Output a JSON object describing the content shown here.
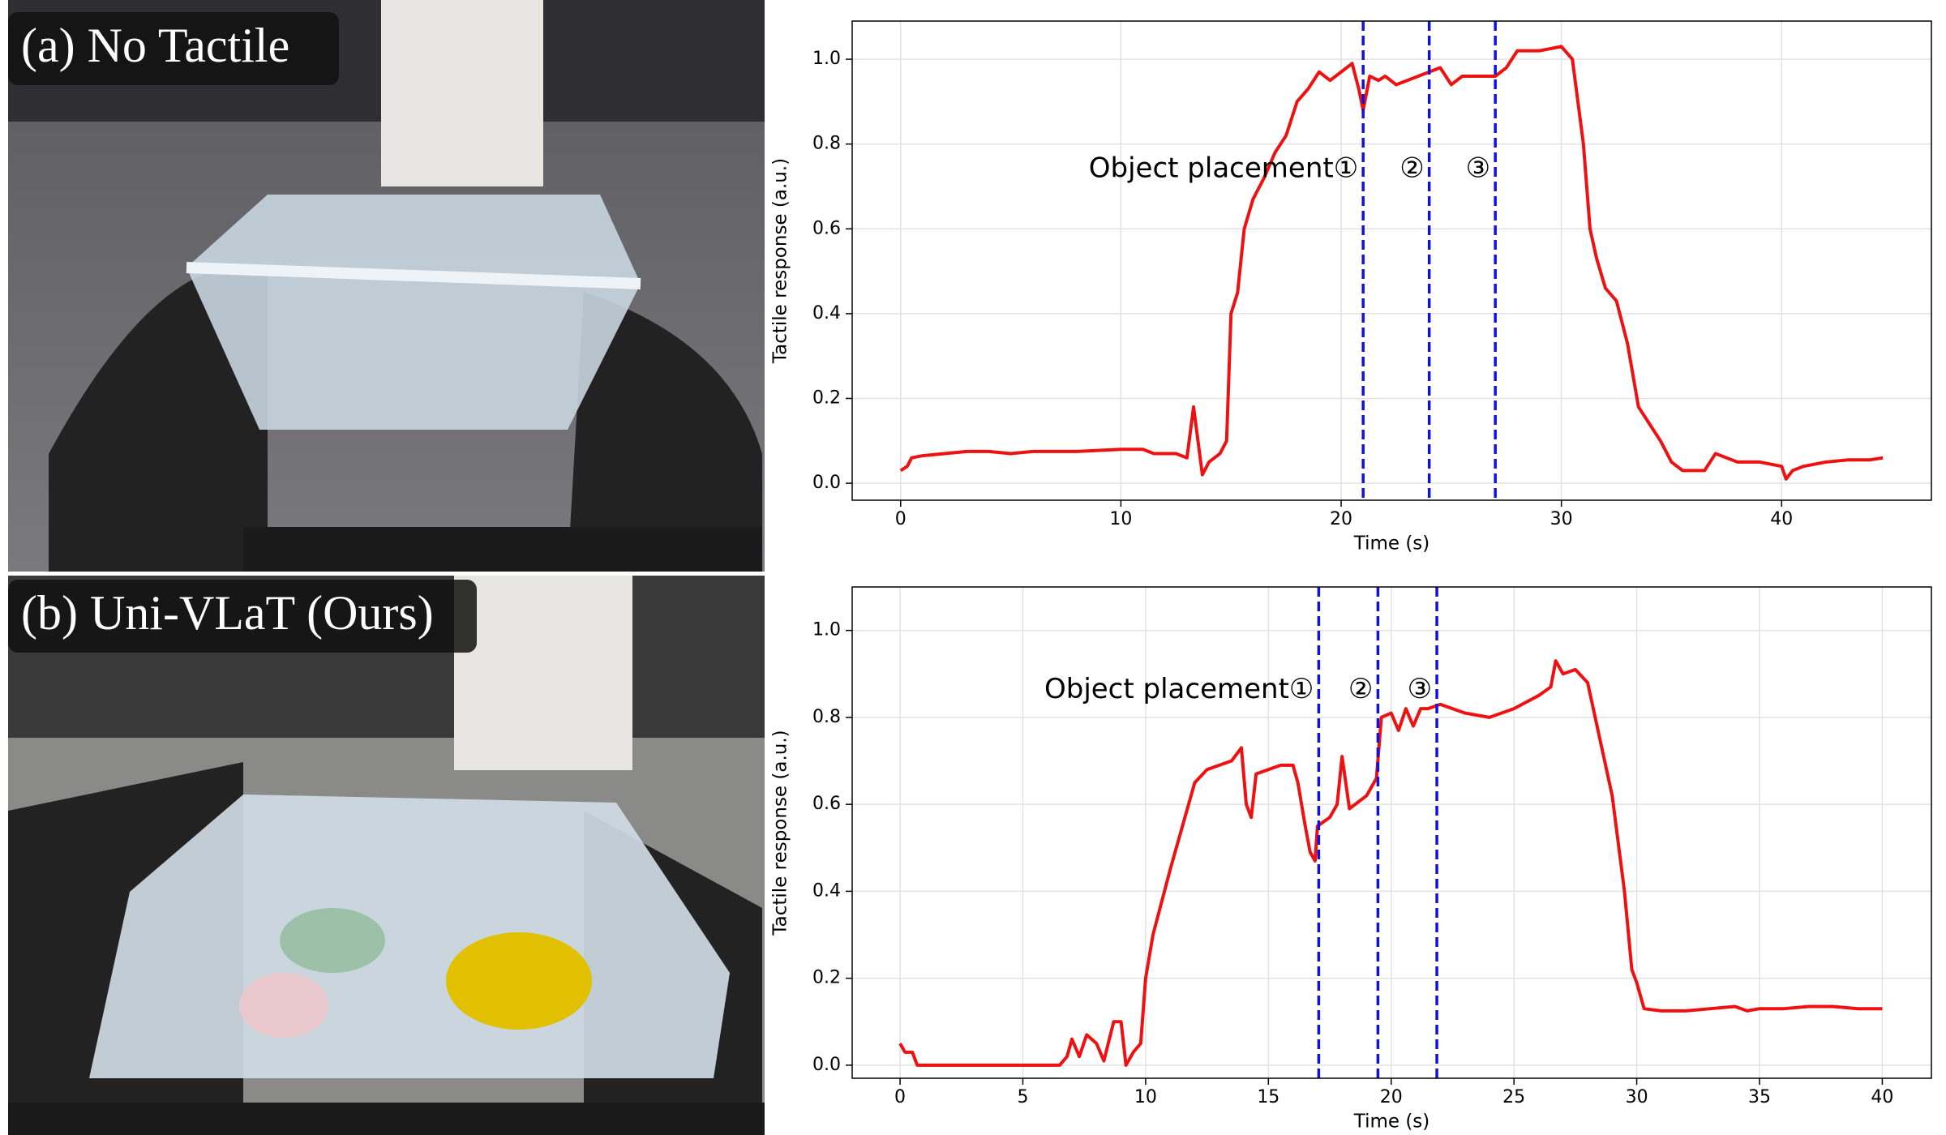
{
  "panels": [
    {
      "label": "(a) No Tactile"
    },
    {
      "label": "(b) Uni-VLaT (Ours)"
    }
  ],
  "chart_data": [
    {
      "type": "line",
      "x_label": "Time (s)",
      "y_label": "Tactile response (a.u.)",
      "x": [
        0,
        0.3,
        0.5,
        1,
        2,
        3,
        4,
        5,
        6,
        8,
        10,
        11,
        11.5,
        12,
        12.5,
        13,
        13.3,
        13.5,
        13.7,
        14,
        14.5,
        14.8,
        15,
        15.3,
        15.6,
        16,
        16.5,
        17,
        17.5,
        18,
        18.5,
        19,
        19.5,
        20,
        20.5,
        20.8,
        21,
        21.3,
        21.7,
        22,
        22.5,
        23,
        23.5,
        24,
        24.5,
        25,
        25.5,
        26,
        27,
        27.5,
        28,
        29,
        30,
        30.5,
        31,
        31.3,
        31.6,
        32,
        32.5,
        33,
        33.5,
        34,
        34.5,
        35,
        35.5,
        36,
        36.5,
        37,
        38,
        39,
        40,
        40.2,
        40.5,
        41,
        42,
        43,
        44,
        44.6
      ],
      "series": [
        {
          "color": "#ee1111",
          "values": [
            0.03,
            0.04,
            0.06,
            0.065,
            0.07,
            0.075,
            0.075,
            0.07,
            0.075,
            0.075,
            0.08,
            0.08,
            0.07,
            0.07,
            0.07,
            0.06,
            0.18,
            0.1,
            0.02,
            0.05,
            0.07,
            0.1,
            0.4,
            0.45,
            0.6,
            0.67,
            0.72,
            0.78,
            0.82,
            0.9,
            0.93,
            0.97,
            0.95,
            0.97,
            0.99,
            0.93,
            0.88,
            0.96,
            0.95,
            0.96,
            0.94,
            0.95,
            0.96,
            0.97,
            0.98,
            0.94,
            0.96,
            0.96,
            0.96,
            0.98,
            1.02,
            1.02,
            1.03,
            1.0,
            0.8,
            0.6,
            0.53,
            0.46,
            0.43,
            0.33,
            0.18,
            0.14,
            0.1,
            0.05,
            0.03,
            0.03,
            0.03,
            0.07,
            0.05,
            0.05,
            0.04,
            0.01,
            0.03,
            0.04,
            0.05,
            0.055,
            0.055,
            0.06
          ]
        }
      ],
      "xlim": [
        -2.2,
        46.8
      ],
      "ylim": [
        -0.04,
        1.09
      ],
      "xticks": [
        0,
        10,
        20,
        30,
        40
      ],
      "yticks": [
        {
          "value": 0,
          "label": "0.0"
        },
        {
          "value": 0.2,
          "label": "0.2"
        },
        {
          "value": 0.4,
          "label": "0.4"
        },
        {
          "value": 0.6,
          "label": "0.6"
        },
        {
          "value": 0.8,
          "label": "0.8"
        },
        {
          "value": 1,
          "label": "1.0"
        }
      ],
      "grid": true,
      "vlines": {
        "color": "#1111dd",
        "values": [
          21,
          24,
          27
        ]
      },
      "annotations": [
        "Object placement①",
        "②",
        "③"
      ]
    },
    {
      "type": "line",
      "x_label": "Time (s)",
      "y_label": "Tactile response (a.u.)",
      "x": [
        0,
        0.2,
        0.5,
        0.7,
        1,
        3,
        5,
        6.5,
        6.8,
        7,
        7.3,
        7.6,
        8,
        8.3,
        8.7,
        9,
        9.2,
        9.5,
        9.8,
        10,
        10.3,
        11,
        11.5,
        12,
        12.5,
        13,
        13.5,
        13.9,
        14.1,
        14.3,
        14.5,
        15,
        15.5,
        16,
        16.2,
        16.5,
        16.7,
        16.9,
        17,
        17.5,
        17.8,
        18,
        18.3,
        19,
        19.4,
        19.6,
        20,
        20.3,
        20.6,
        20.9,
        21.2,
        21.5,
        22,
        23,
        24,
        25,
        26,
        26.5,
        26.7,
        27,
        27.5,
        28,
        28.5,
        29,
        29.5,
        29.8,
        30,
        30.3,
        31,
        32,
        33,
        34,
        34.5,
        35,
        36,
        37,
        38,
        39,
        40
      ],
      "series": [
        {
          "color": "#ee1111",
          "values": [
            0.05,
            0.03,
            0.03,
            0,
            0,
            0,
            0,
            0,
            0.02,
            0.06,
            0.02,
            0.07,
            0.05,
            0.01,
            0.1,
            0.1,
            0,
            0.03,
            0.05,
            0.2,
            0.3,
            0.45,
            0.55,
            0.65,
            0.68,
            0.69,
            0.7,
            0.73,
            0.6,
            0.57,
            0.67,
            0.68,
            0.69,
            0.69,
            0.65,
            0.55,
            0.49,
            0.47,
            0.55,
            0.57,
            0.6,
            0.71,
            0.59,
            0.62,
            0.66,
            0.8,
            0.81,
            0.77,
            0.82,
            0.78,
            0.82,
            0.82,
            0.83,
            0.81,
            0.8,
            0.82,
            0.85,
            0.87,
            0.93,
            0.9,
            0.91,
            0.88,
            0.75,
            0.62,
            0.4,
            0.22,
            0.19,
            0.13,
            0.125,
            0.125,
            0.13,
            0.135,
            0.125,
            0.13,
            0.13,
            0.135,
            0.135,
            0.13,
            0.13
          ]
        }
      ],
      "xlim": [
        -1.95,
        42
      ],
      "ylim": [
        -0.03,
        1.1
      ],
      "xticks": [
        0,
        5,
        10,
        15,
        20,
        25,
        30,
        35,
        40
      ],
      "yticks": [
        {
          "value": 0,
          "label": "0.0"
        },
        {
          "value": 0.2,
          "label": "0.2"
        },
        {
          "value": 0.4,
          "label": "0.4"
        },
        {
          "value": 0.6,
          "label": "0.6"
        },
        {
          "value": 0.8,
          "label": "0.8"
        },
        {
          "value": 1,
          "label": "1.0"
        }
      ],
      "grid": true,
      "vlines": {
        "color": "#1111dd",
        "values": [
          17.05,
          19.46,
          21.86
        ]
      },
      "annotations": [
        "Object placement①",
        "②",
        "③"
      ]
    }
  ]
}
